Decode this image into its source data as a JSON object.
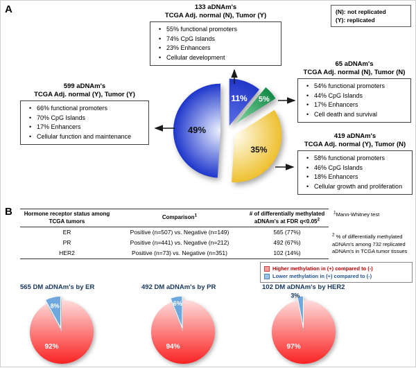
{
  "figure": {
    "panelA_label": "A",
    "panelB_label": "B"
  },
  "panelA": {
    "legend": {
      "line1": "(N): not replicated",
      "line2": "(Y): replicated"
    },
    "boxes": [
      {
        "title1": "133 aDNAm's",
        "title2": "TCGA Adj. normal (N), Tumor (Y)",
        "bullets": [
          "55% functional promoters",
          "74% CpG Islands",
          "23% Enhancers",
          "Cellular development"
        ]
      },
      {
        "title1": "65 aDNAm's",
        "title2": "TCGA Adj. normal (N), Tumor (N)",
        "bullets": [
          "54% functional promoters",
          "44% CpG Islands",
          "17% Enhancers",
          "Cell death and survival"
        ]
      },
      {
        "title1": "599 aDNAm's",
        "title2": "TCGA Adj. normal (Y), Tumor (Y)",
        "bullets": [
          "66% functional promoters",
          "70% CpG Islands",
          "17% Enhancers",
          "Cellular function and maintenance"
        ]
      },
      {
        "title1": "419 aDNAm's",
        "title2": "TCGA Adj. normal (Y), Tumor (N)",
        "bullets": [
          "58% functional promoters",
          "46% CpG Islands",
          "18% Enhancers",
          "Cellular growth and proliferation"
        ]
      }
    ]
  },
  "panelB": {
    "table": {
      "header1": "Hormone receptor status among TCGA tumors",
      "header2": "Comparison",
      "header2_sup": "1",
      "header3": "# of differentially methylated aDNAm's at FDR q<0.05",
      "header3_sup": "2",
      "rows": [
        {
          "receptor": "ER",
          "comparison": "Positive (n=507) vs. Negative (n=149)",
          "result": "565 (77%)"
        },
        {
          "receptor": "PR",
          "comparison": "Positive (n=441) vs. Negative (n=212)",
          "result": "492 (67%)"
        },
        {
          "receptor": "HER2",
          "comparison": "Positive (n=73) vs. Negative (n=351)",
          "result": "102 (14%)"
        }
      ]
    },
    "note1_sup": "1",
    "note1": "Mann-Whitney test",
    "note2_sup": "2",
    "note2": " % of differentially methylated aDNAm's among 732 replicated aDNAm's in TCGA tumor tissues",
    "legend": {
      "items": [
        {
          "label": "Higher methylation in (+) compared to (-)",
          "swatch": "#ff9d9d",
          "swatch_border": "#cc4444",
          "text_color": "#c00000"
        },
        {
          "label": "Lower methylation in (+) compared to (-)",
          "swatch": "#9dc3e6",
          "swatch_border": "#4a86c8",
          "text_color": "#1f5597"
        }
      ]
    },
    "pie_titles": [
      "565 DM aDNAm's by ER",
      "492 DM aDNAm's by PR",
      "102 DM aDNAm's by HER2"
    ]
  },
  "chart_data": [
    {
      "type": "pie",
      "title": "",
      "start_angle": 0,
      "slices": [
        {
          "label": "TCGA Adj. normal (N), Tumor (Y)",
          "count": 133,
          "value": 11,
          "color": "#2236c8",
          "color_light": "#5b6fe8",
          "gradient": "radial",
          "label_color": "#ffffff",
          "label_size": 12,
          "explode": 8,
          "label_r": 0.62
        },
        {
          "label": "TCGA Adj. normal (N), Tumor (N)",
          "count": 65,
          "value": 5,
          "color": "#128a45",
          "color_light": "#86d6a6",
          "gradient": "radial",
          "label_color": "#ffffff",
          "label_size": 11,
          "explode": 16,
          "label_r": 0.8
        },
        {
          "label": "TCGA Adj. normal (Y), Tumor (N)",
          "count": 419,
          "value": 35,
          "color": "#eec02f",
          "color_light": "#fffdf0",
          "gradient": "radial",
          "label_color": "#111111",
          "label_size": 12,
          "explode": 12,
          "label_r": 0.6
        },
        {
          "label": "TCGA Adj. normal (Y), Tumor (Y)",
          "count": 599,
          "value": 49,
          "color": "#1d36cb",
          "color_light": "#eef3ff",
          "gradient": "radial",
          "label_color": "#111111",
          "label_size": 13,
          "explode": 10,
          "label_r": 0.5
        }
      ]
    },
    {
      "type": "pie",
      "title": "565 DM aDNAm's by ER",
      "start_angle": -28.8,
      "slices": [
        {
          "label": "Lower methylation in (+) compared to (-)",
          "value": 8,
          "color": "#6fa8dc",
          "label_color": "#ffffff",
          "label_size": 9,
          "explode": 6,
          "label_r": 0.72,
          "stroke": "#ffffff"
        },
        {
          "label": "Higher methylation in (+) compared to (-)",
          "value": 92,
          "color": "#fa2323",
          "color_light": "#ffdcdc",
          "gradient": "linear",
          "label_color": "#ffffff",
          "label_size": 10,
          "explode": 0,
          "label_r": 0.55,
          "label_angle": 215
        }
      ]
    },
    {
      "type": "pie",
      "title": "492 DM aDNAm's by PR",
      "start_angle": -21.6,
      "slices": [
        {
          "label": "Lower methylation in (+) compared to (-)",
          "value": 6,
          "color": "#6fa8dc",
          "label_color": "#ffffff",
          "label_size": 9,
          "explode": 6,
          "label_r": 0.78,
          "stroke": "#ffffff"
        },
        {
          "label": "Higher methylation in (+) compared to (-)",
          "value": 94,
          "color": "#fa2323",
          "color_light": "#ffdcdc",
          "gradient": "linear",
          "label_color": "#ffffff",
          "label_size": 10,
          "explode": 0,
          "label_r": 0.55,
          "label_angle": 215
        }
      ]
    },
    {
      "type": "pie",
      "title": "102 DM aDNAm's by HER2",
      "start_angle": -10.8,
      "slices": [
        {
          "label": "Lower methylation in (+) compared to (-)",
          "value": 3,
          "color": "#6fa8dc",
          "label_color": "#17375e",
          "label_size": 9,
          "explode": 6,
          "label_r": 1.05,
          "label_angle": -14,
          "stroke": "#ffffff"
        },
        {
          "label": "Higher methylation in (+) compared to (-)",
          "value": 97,
          "color": "#fa2323",
          "color_light": "#ffdcdc",
          "gradient": "linear",
          "label_color": "#ffffff",
          "label_size": 10,
          "explode": 0,
          "label_r": 0.55,
          "label_angle": 215
        }
      ]
    }
  ]
}
